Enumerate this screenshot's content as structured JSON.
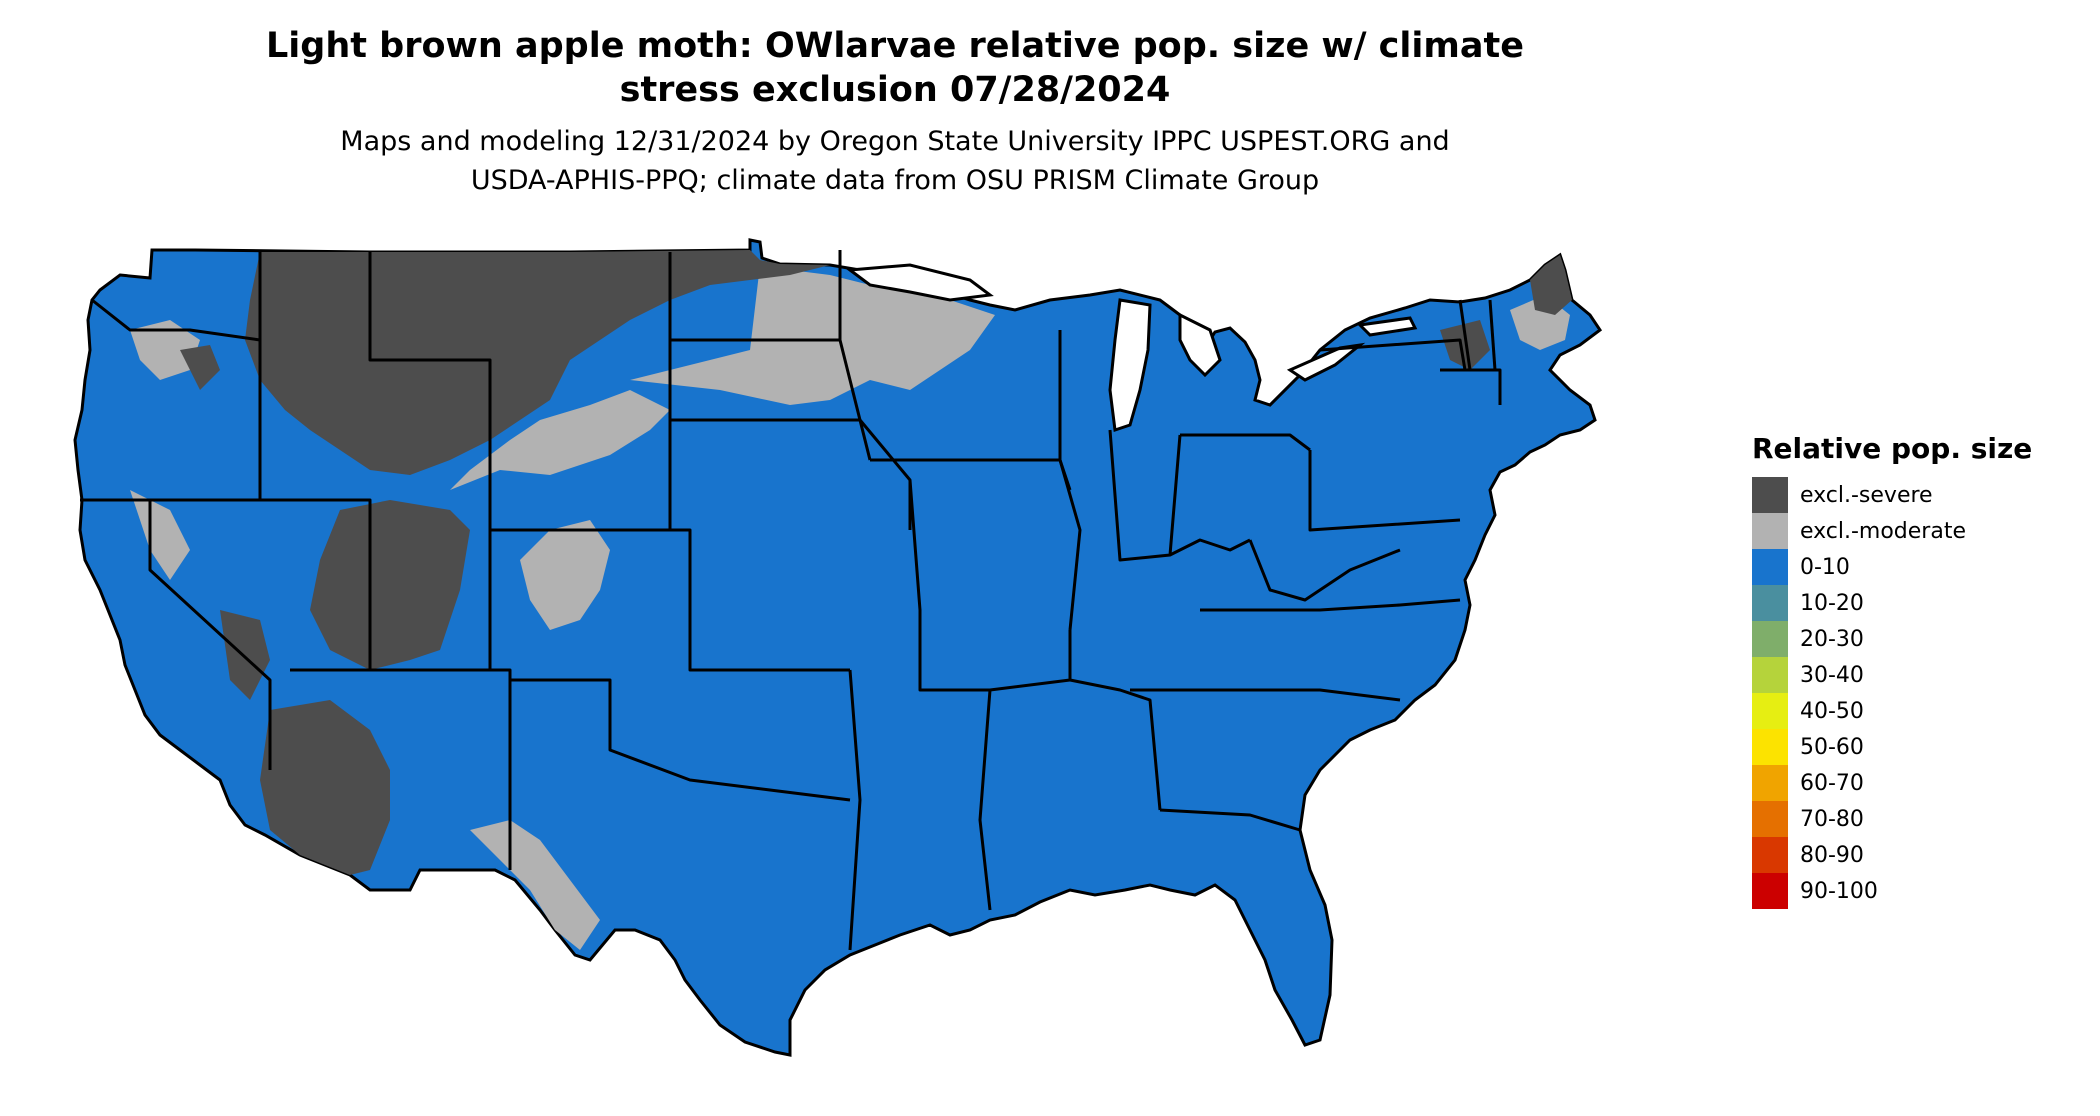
{
  "title": "Light brown apple moth: OWlarvae relative pop. size w/ climate\nstress exclusion 07/28/2024",
  "subtitle": "Maps and modeling 12/31/2024 by Oregon State University IPPC USPEST.ORG and\nUSDA-APHIS-PPQ; climate data from OSU PRISM Climate Group",
  "map": {
    "region": "Contiguous United States",
    "background_category": "0-10"
  },
  "legend": {
    "title": "Relative pop. size",
    "items": [
      {
        "label": "excl.-severe",
        "color": "#4d4d4d"
      },
      {
        "label": "excl.-moderate",
        "color": "#b2b2b2"
      },
      {
        "label": "0-10",
        "color": "#1874cd"
      },
      {
        "label": "10-20",
        "color": "#4a8f9f"
      },
      {
        "label": "20-30",
        "color": "#7fae6a"
      },
      {
        "label": "30-40",
        "color": "#b5d33b"
      },
      {
        "label": "40-50",
        "color": "#e6ee12"
      },
      {
        "label": "50-60",
        "color": "#fce300"
      },
      {
        "label": "60-70",
        "color": "#f0a400"
      },
      {
        "label": "70-80",
        "color": "#e57000"
      },
      {
        "label": "80-90",
        "color": "#d93800"
      },
      {
        "label": "90-100",
        "color": "#cc0000"
      }
    ]
  }
}
